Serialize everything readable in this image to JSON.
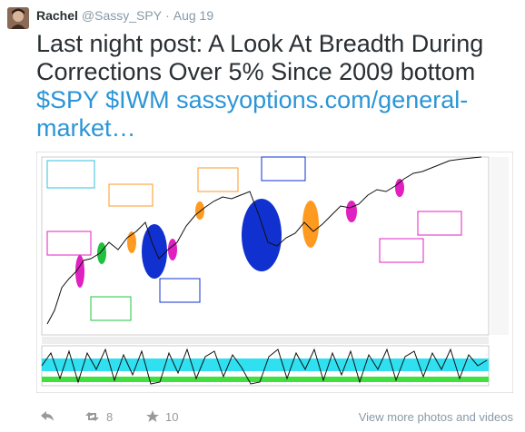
{
  "tweet": {
    "author": {
      "name": "Rachel",
      "handle": "@Sassy_SPY",
      "separator": "·",
      "date": "Aug 19"
    },
    "lines": [
      [
        {
          "text": "Last night post: A Look At Breadth During",
          "link": false
        }
      ],
      [
        {
          "text": "Corrections Over 5% Since 2009 bottom",
          "link": false
        }
      ],
      [
        {
          "text": "$SPY",
          "link": true
        },
        {
          "text": " ",
          "link": false
        },
        {
          "text": "$IWM",
          "link": true
        },
        {
          "text": " ",
          "link": false
        },
        {
          "text": "sassyoptions.com/general-",
          "link": true
        }
      ],
      [
        {
          "text": "market…",
          "link": true
        }
      ]
    ],
    "retweets": "8",
    "favorites": "10",
    "more_media": "View more photos and videos"
  }
}
